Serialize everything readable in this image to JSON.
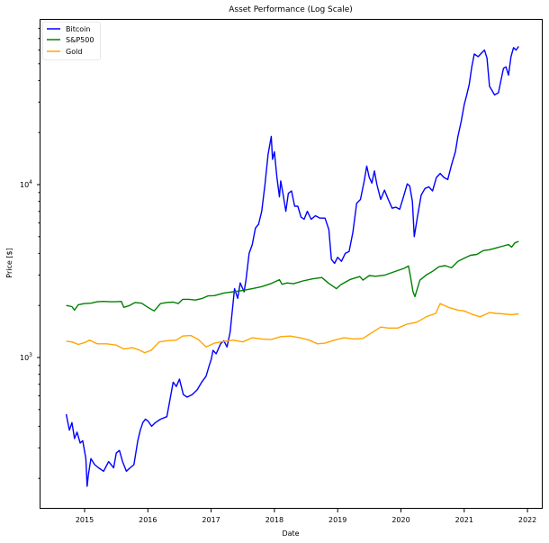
{
  "chart_data": {
    "type": "line",
    "title": "Asset Performance (Log Scale)",
    "xlabel": "Date",
    "ylabel": "Price [$]",
    "yscale": "log",
    "xlim": [
      2014.35,
      2022.25
    ],
    "ylim": [
      150,
      85000
    ],
    "xticks": [
      "2015",
      "2016",
      "2017",
      "2018",
      "2019",
      "2020",
      "2021",
      "2022"
    ],
    "yticks": [
      "10^3",
      "10^4"
    ],
    "grid": false,
    "legend_position": "upper left",
    "legend": [
      "Bitcoin",
      "S&P500",
      "Gold"
    ],
    "colors": {
      "Bitcoin": "#0000ff",
      "S&P500": "#008000",
      "Gold": "#ffa500"
    },
    "series": [
      {
        "name": "Bitcoin",
        "color": "#0000ff",
        "x": [
          2014.71,
          2014.76,
          2014.8,
          2014.84,
          2014.88,
          2014.93,
          2014.97,
          2015.02,
          2015.04,
          2015.06,
          2015.1,
          2015.16,
          2015.22,
          2015.3,
          2015.38,
          2015.46,
          2015.5,
          2015.55,
          2015.6,
          2015.66,
          2015.72,
          2015.78,
          2015.84,
          2015.88,
          2015.92,
          2015.96,
          2016.0,
          2016.06,
          2016.12,
          2016.2,
          2016.3,
          2016.4,
          2016.45,
          2016.5,
          2016.56,
          2016.62,
          2016.7,
          2016.78,
          2016.85,
          2016.92,
          2016.97,
          2017.0,
          2017.03,
          2017.08,
          2017.15,
          2017.2,
          2017.25,
          2017.3,
          2017.37,
          2017.42,
          2017.46,
          2017.52,
          2017.55,
          2017.6,
          2017.65,
          2017.7,
          2017.75,
          2017.8,
          2017.85,
          2017.9,
          2017.95,
          2017.97,
          2018.0,
          2018.04,
          2018.08,
          2018.1,
          2018.14,
          2018.18,
          2018.22,
          2018.27,
          2018.32,
          2018.37,
          2018.42,
          2018.47,
          2018.52,
          2018.58,
          2018.65,
          2018.72,
          2018.8,
          2018.86,
          2018.9,
          2018.95,
          2019.0,
          2019.06,
          2019.12,
          2019.18,
          2019.24,
          2019.3,
          2019.36,
          2019.42,
          2019.46,
          2019.5,
          2019.54,
          2019.58,
          2019.62,
          2019.68,
          2019.74,
          2019.8,
          2019.86,
          2019.92,
          2019.98,
          2020.04,
          2020.1,
          2020.14,
          2020.18,
          2020.21,
          2020.26,
          2020.32,
          2020.38,
          2020.44,
          2020.5,
          2020.56,
          2020.62,
          2020.68,
          2020.74,
          2020.8,
          2020.86,
          2020.9,
          2020.95,
          2021.0,
          2021.04,
          2021.08,
          2021.12,
          2021.16,
          2021.22,
          2021.28,
          2021.32,
          2021.36,
          2021.4,
          2021.44,
          2021.48,
          2021.54,
          2021.58,
          2021.62,
          2021.66,
          2021.7,
          2021.74,
          2021.78,
          2021.82,
          2021.86
        ],
        "values": [
          470,
          380,
          420,
          340,
          370,
          320,
          330,
          260,
          180,
          210,
          260,
          240,
          230,
          220,
          250,
          230,
          280,
          290,
          250,
          220,
          230,
          240,
          330,
          380,
          420,
          440,
          430,
          400,
          420,
          440,
          455,
          720,
          680,
          750,
          610,
          590,
          610,
          650,
          720,
          780,
          900,
          970,
          1100,
          1050,
          1200,
          1250,
          1150,
          1400,
          2500,
          2200,
          2700,
          2400,
          2800,
          4000,
          4500,
          5600,
          5900,
          7000,
          10000,
          15000,
          19000,
          14000,
          15500,
          11000,
          8500,
          10500,
          8700,
          7000,
          8900,
          9200,
          7500,
          7500,
          6500,
          6300,
          7000,
          6300,
          6600,
          6400,
          6400,
          5500,
          3700,
          3500,
          3800,
          3600,
          4000,
          4100,
          5300,
          7800,
          8200,
          10500,
          12800,
          11000,
          10200,
          12000,
          10000,
          8200,
          9300,
          8200,
          7300,
          7400,
          7200,
          8500,
          10100,
          9800,
          8000,
          5000,
          6500,
          8700,
          9500,
          9700,
          9200,
          11000,
          11600,
          11000,
          10700,
          13000,
          15500,
          19000,
          23000,
          29000,
          33000,
          38000,
          48000,
          57000,
          55000,
          58000,
          60000,
          54000,
          37000,
          35000,
          33000,
          34000,
          40000,
          47000,
          48000,
          43000,
          55000,
          62000,
          60000,
          63000
        ]
      },
      {
        "name": "S&P500",
        "color": "#008000",
        "x": [
          2014.71,
          2014.8,
          2014.84,
          2014.9,
          2015.0,
          2015.1,
          2015.2,
          2015.3,
          2015.4,
          2015.5,
          2015.58,
          2015.62,
          2015.7,
          2015.8,
          2015.9,
          2016.0,
          2016.1,
          2016.2,
          2016.3,
          2016.4,
          2016.48,
          2016.55,
          2016.65,
          2016.75,
          2016.85,
          2016.95,
          2017.05,
          2017.2,
          2017.35,
          2017.5,
          2017.65,
          2017.8,
          2017.95,
          2018.08,
          2018.12,
          2018.2,
          2018.3,
          2018.45,
          2018.6,
          2018.75,
          2018.85,
          2018.98,
          2019.05,
          2019.2,
          2019.35,
          2019.4,
          2019.5,
          2019.6,
          2019.75,
          2019.9,
          2020.05,
          2020.12,
          2020.15,
          2020.19,
          2020.22,
          2020.3,
          2020.4,
          2020.5,
          2020.6,
          2020.7,
          2020.8,
          2020.9,
          2021.0,
          2021.1,
          2021.2,
          2021.3,
          2021.4,
          2021.5,
          2021.6,
          2021.7,
          2021.75,
          2021.8,
          2021.86
        ],
        "values": [
          2000,
          1970,
          1880,
          2020,
          2050,
          2060,
          2100,
          2110,
          2100,
          2100,
          2110,
          1950,
          1990,
          2080,
          2060,
          1950,
          1860,
          2050,
          2080,
          2090,
          2050,
          2170,
          2170,
          2150,
          2190,
          2270,
          2280,
          2360,
          2400,
          2440,
          2500,
          2570,
          2680,
          2820,
          2650,
          2700,
          2670,
          2770,
          2850,
          2900,
          2700,
          2500,
          2640,
          2830,
          2940,
          2800,
          2980,
          2950,
          3000,
          3140,
          3280,
          3380,
          2950,
          2400,
          2250,
          2800,
          3000,
          3150,
          3350,
          3400,
          3300,
          3600,
          3750,
          3900,
          3950,
          4150,
          4200,
          4300,
          4400,
          4500,
          4350,
          4600,
          4700
        ]
      },
      {
        "name": "Gold",
        "color": "#ffa500",
        "x": [
          2014.71,
          2014.8,
          2014.9,
          2015.0,
          2015.08,
          2015.2,
          2015.35,
          2015.5,
          2015.62,
          2015.75,
          2015.85,
          2015.95,
          2016.05,
          2016.18,
          2016.3,
          2016.45,
          2016.55,
          2016.68,
          2016.8,
          2016.92,
          2017.05,
          2017.2,
          2017.35,
          2017.5,
          2017.65,
          2017.8,
          2017.95,
          2018.1,
          2018.25,
          2018.4,
          2018.55,
          2018.68,
          2018.8,
          2018.95,
          2019.1,
          2019.25,
          2019.4,
          2019.55,
          2019.68,
          2019.8,
          2019.95,
          2020.1,
          2020.25,
          2020.4,
          2020.55,
          2020.62,
          2020.75,
          2020.9,
          2021.0,
          2021.12,
          2021.25,
          2021.4,
          2021.5,
          2021.6,
          2021.75,
          2021.86
        ],
        "values": [
          1240,
          1230,
          1190,
          1220,
          1260,
          1200,
          1200,
          1180,
          1120,
          1140,
          1110,
          1065,
          1100,
          1230,
          1250,
          1260,
          1330,
          1340,
          1270,
          1150,
          1210,
          1240,
          1260,
          1230,
          1300,
          1280,
          1270,
          1320,
          1330,
          1300,
          1260,
          1200,
          1210,
          1260,
          1300,
          1280,
          1290,
          1400,
          1500,
          1480,
          1480,
          1560,
          1600,
          1720,
          1800,
          2050,
          1950,
          1880,
          1860,
          1780,
          1720,
          1820,
          1800,
          1790,
          1770,
          1790
        ]
      }
    ]
  }
}
